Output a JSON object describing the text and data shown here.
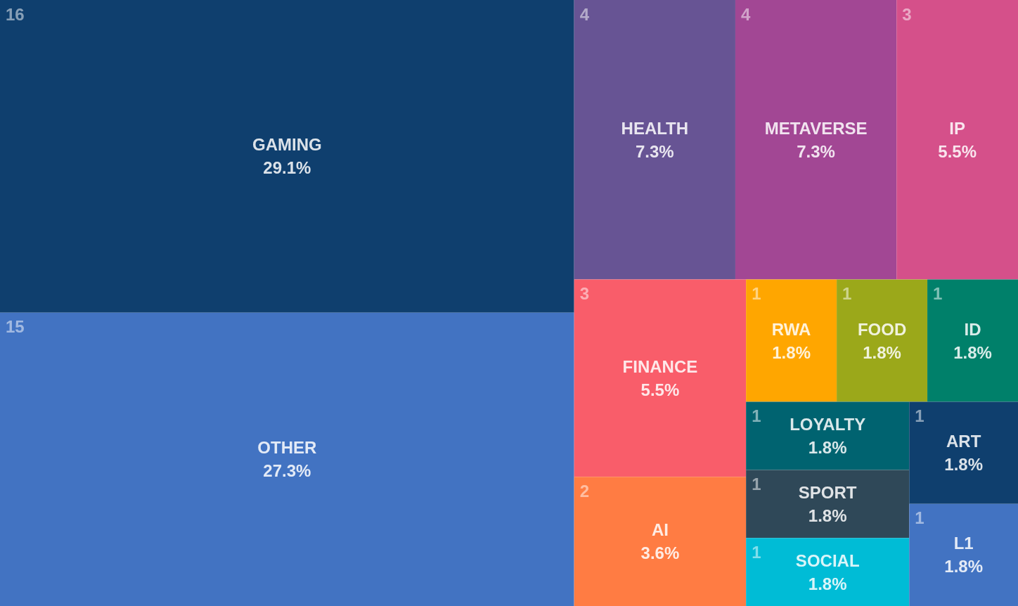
{
  "chart_data": {
    "type": "other",
    "categories": [
      "GAMING",
      "OTHER",
      "HEALTH",
      "METAVERSE",
      "IP",
      "FINANCE",
      "AI",
      "RWA",
      "FOOD",
      "ID",
      "LOYALTY",
      "SPORT",
      "SOCIAL",
      "ART",
      "L1"
    ],
    "values": [
      29.1,
      27.3,
      7.3,
      7.3,
      5.5,
      5.5,
      3.6,
      1.8,
      1.8,
      1.8,
      1.8,
      1.8,
      1.8,
      1.8,
      1.8
    ],
    "value_labels": [
      "29.1%",
      "27.3%",
      "7.3%",
      "7.3%",
      "5.5%",
      "5.5%",
      "3.6%",
      "1.8%",
      "1.8%",
      "1.8%",
      "1.8%",
      "1.8%",
      "1.8%",
      "1.8%",
      "1.8%"
    ],
    "colors": [
      "#0f3f6e",
      "#4273c2",
      "#675494",
      "#a24794",
      "#d5508a",
      "#f95d6a",
      "#ff7c43",
      "#ffa600",
      "#9ba81a",
      "#00806a",
      "#006370",
      "#2f4858",
      "#00bcd6",
      "#0f3f6e",
      "#4273c2"
    ],
    "annotations": [
      {
        "text": "16",
        "x": "GAMING"
      },
      {
        "text": "15",
        "x": "OTHER"
      },
      {
        "text": "4",
        "x": "HEALTH"
      },
      {
        "text": "4",
        "x": "METAVERSE"
      },
      {
        "text": "3",
        "x": "IP"
      },
      {
        "text": "3",
        "x": "FINANCE"
      },
      {
        "text": "2",
        "x": "AI"
      },
      {
        "text": "1",
        "x": "RWA"
      },
      {
        "text": "1",
        "x": "FOOD"
      },
      {
        "text": "1",
        "x": "ID"
      },
      {
        "text": "1",
        "x": "LOYALTY"
      },
      {
        "text": "1",
        "x": "SPORT"
      },
      {
        "text": "1",
        "x": "SOCIAL"
      },
      {
        "text": "1",
        "x": "ART"
      },
      {
        "text": "1",
        "x": "L1"
      }
    ]
  }
}
